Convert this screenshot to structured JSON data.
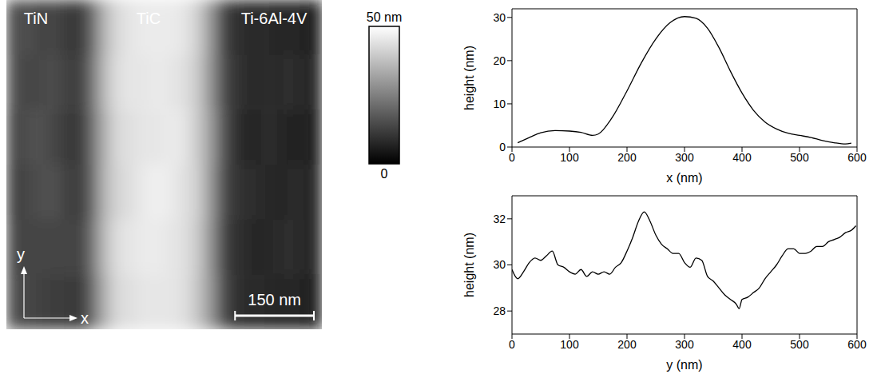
{
  "image": {
    "type": "heatmap",
    "labels": [
      "TiN",
      "TiC",
      "Ti-6Al-4V"
    ],
    "axes": [
      "x",
      "y"
    ],
    "extent": [
      0,
      600
    ],
    "scale_bar": {
      "length": 150,
      "label": "150 nm"
    },
    "cells": [
      [
        14,
        16,
        13,
        14,
        12,
        10,
        20,
        36,
        43,
        45,
        46,
        46,
        46,
        45,
        41,
        30,
        14,
        9,
        8,
        9,
        7,
        8,
        7,
        6
      ],
      [
        15,
        14,
        14,
        15,
        13,
        11,
        22,
        37,
        44,
        45,
        45,
        46,
        45,
        44,
        40,
        29,
        15,
        10,
        8,
        8,
        8,
        9,
        8,
        7
      ],
      [
        13,
        15,
        16,
        14,
        12,
        10,
        21,
        35,
        43,
        44,
        45,
        45,
        46,
        45,
        40,
        31,
        16,
        9,
        7,
        8,
        8,
        7,
        7,
        6
      ],
      [
        12,
        14,
        15,
        16,
        13,
        11,
        20,
        36,
        42,
        44,
        46,
        47,
        46,
        44,
        41,
        30,
        15,
        10,
        9,
        8,
        7,
        8,
        8,
        7
      ],
      [
        14,
        13,
        14,
        13,
        14,
        12,
        22,
        37,
        44,
        45,
        46,
        46,
        45,
        44,
        40,
        29,
        14,
        9,
        8,
        7,
        8,
        9,
        8,
        7
      ],
      [
        15,
        14,
        13,
        12,
        12,
        10,
        20,
        35,
        43,
        44,
        45,
        45,
        45,
        44,
        39,
        30,
        15,
        9,
        8,
        8,
        7,
        8,
        7,
        6
      ]
    ],
    "colorbar": {
      "range": [
        0,
        50
      ],
      "ticks": [
        0,
        {
          "value": 50,
          "label": "50 nm"
        }
      ]
    }
  },
  "chart_data": [
    {
      "type": "line",
      "x": [
        10,
        30,
        50,
        75,
        100,
        120,
        140,
        150,
        175,
        200,
        225,
        250,
        275,
        300,
        320,
        340,
        360,
        380,
        400,
        420,
        440,
        460,
        480,
        500,
        520,
        540,
        560,
        580,
        590
      ],
      "values": [
        1,
        2.2,
        3.3,
        3.8,
        3.7,
        3.4,
        2.7,
        3.0,
        7,
        13,
        19.5,
        25,
        28.8,
        30.2,
        29.8,
        27.5,
        23,
        17.5,
        12.5,
        8.5,
        5.8,
        4.2,
        3.2,
        2.7,
        2.2,
        1.5,
        1.0,
        0.7,
        0.9
      ],
      "color": "#000000",
      "x_label": "x (nm)",
      "y_label": "height (nm)",
      "xlim": [
        0,
        600
      ],
      "xticks": [
        0,
        100,
        200,
        300,
        400,
        500,
        600
      ],
      "ylim": [
        0,
        32
      ],
      "yticks": [
        0,
        10,
        20,
        30
      ]
    },
    {
      "type": "line",
      "x": [
        0,
        10,
        20,
        30,
        40,
        50,
        60,
        70,
        80,
        90,
        100,
        110,
        120,
        130,
        140,
        150,
        160,
        170,
        180,
        190,
        200,
        210,
        220,
        230,
        240,
        250,
        260,
        270,
        280,
        290,
        300,
        310,
        320,
        330,
        340,
        350,
        360,
        370,
        380,
        390,
        395,
        400,
        410,
        420,
        430,
        440,
        450,
        460,
        470,
        480,
        490,
        500,
        510,
        520,
        530,
        540,
        550,
        560,
        570,
        580,
        590,
        598
      ],
      "values": [
        29.8,
        29.4,
        29.7,
        30.1,
        30.3,
        30.2,
        30.4,
        30.6,
        30.0,
        29.9,
        29.7,
        29.6,
        29.8,
        29.5,
        29.7,
        29.6,
        29.7,
        29.6,
        29.9,
        30.1,
        30.6,
        31.2,
        31.9,
        32.3,
        31.9,
        31.3,
        30.9,
        30.7,
        30.5,
        30.5,
        30.1,
        29.9,
        30.3,
        30.2,
        29.5,
        29.3,
        29.0,
        28.7,
        28.5,
        28.3,
        28.1,
        28.5,
        28.6,
        28.8,
        29.0,
        29.4,
        29.7,
        30.0,
        30.4,
        30.7,
        30.7,
        30.5,
        30.5,
        30.6,
        30.8,
        30.8,
        31.0,
        31.1,
        31.2,
        31.4,
        31.5,
        31.7
      ],
      "color": "#000000",
      "x_label": "y (nm)",
      "y_label": "height (nm)",
      "xlim": [
        0,
        600
      ],
      "xticks": [
        0,
        100,
        200,
        300,
        400,
        500,
        600
      ],
      "ylim": [
        27,
        33
      ],
      "yticks": [
        28,
        30,
        32
      ]
    }
  ]
}
